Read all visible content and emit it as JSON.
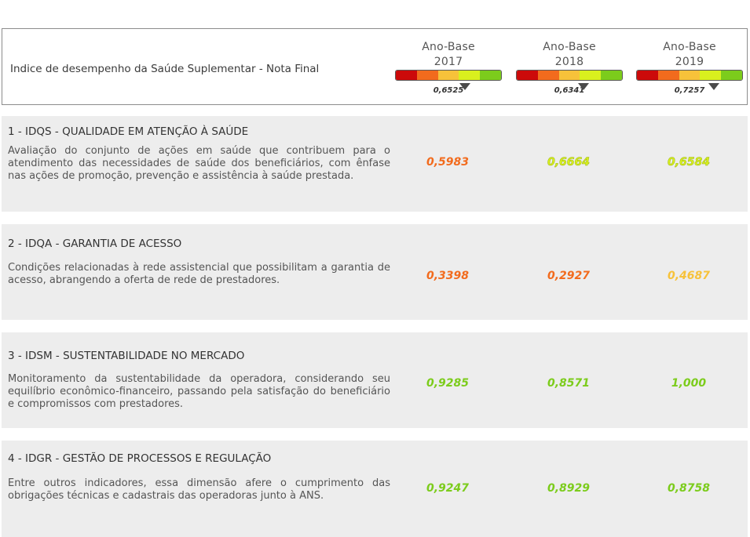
{
  "header": {
    "title": "Indice de desempenho da Saúde Suplementar - Nota Final",
    "years": [
      {
        "label": "Ano-Base",
        "year": "2017",
        "score": "0,6525",
        "pointer_fraction": 0.6525
      },
      {
        "label": "Ano-Base",
        "year": "2018",
        "score": "0,6341",
        "pointer_fraction": 0.6341
      },
      {
        "label": "Ano-Base",
        "year": "2019",
        "score": "0,7257",
        "pointer_fraction": 0.7257
      }
    ],
    "gauge_colors": [
      "#cc0a0a",
      "#f26b1d",
      "#f7c23a",
      "#d9f01e",
      "#7ccc1c"
    ]
  },
  "dimensions": [
    {
      "title": "1 - IDQS - QUALIDADE EM ATENÇÃO À SAÚDE",
      "description": "Avaliação do conjunto de ações em saúde que contribuem para o atendimento das necessidades de saúde dos beneficiários, com ênfase nas ações de promoção, prevenção e assistência à saúde prestada.",
      "values": [
        "0,5983",
        "0,6664",
        "0,6584"
      ],
      "value_colors": [
        "orange",
        "lime",
        "lime"
      ]
    },
    {
      "title": "2 - IDQA - GARANTIA DE ACESSO",
      "description": "Condições relacionadas à rede assistencial que possibilitam a garantia de acesso, abrangendo a oferta de rede de prestadores.",
      "values": [
        "0,3398",
        "0,2927",
        "0,4687"
      ],
      "value_colors": [
        "orange",
        "orange",
        "yellow"
      ]
    },
    {
      "title": "3 - IDSM - SUSTENTABILIDADE NO MERCADO",
      "description": "Monitoramento da sustentabilidade da operadora, considerando seu equilíbrio econômico-financeiro, passando pela satisfação do beneficiário e compromissos com prestadores.",
      "values": [
        "0,9285",
        "0,8571",
        "1,000"
      ],
      "value_colors": [
        "green",
        "green",
        "green"
      ]
    },
    {
      "title": "4 - IDGR - GESTÃO DE PROCESSOS E REGULAÇÃO",
      "description": "Entre outros indicadores, essa dimensão afere o cumprimento das obrigações técnicas e cadastrais das operadoras junto à ANS.",
      "values": [
        "0,9247",
        "0,8929",
        "0,8758"
      ],
      "value_colors": [
        "green",
        "green",
        "green"
      ]
    }
  ]
}
